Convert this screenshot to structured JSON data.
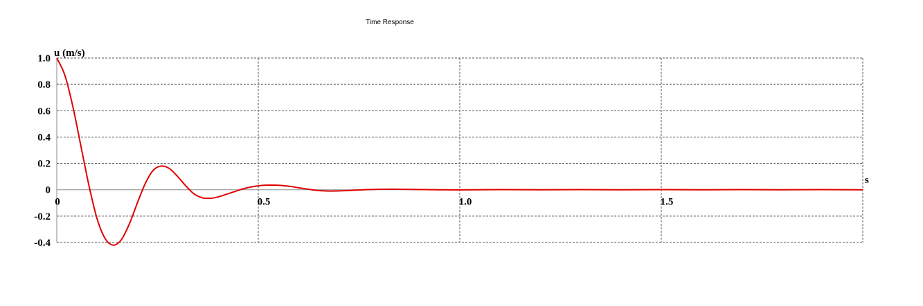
{
  "chart_data": {
    "type": "line",
    "title": "Time Response",
    "ylabel": "u (m/s)",
    "xlabel": "s",
    "xlim": [
      0,
      2.0
    ],
    "ylim": [
      -0.4,
      1.0
    ],
    "grid": true,
    "x_ticks": [
      {
        "value": 0,
        "label": "0"
      },
      {
        "value": 0.5,
        "label": "0.5"
      },
      {
        "value": 1.0,
        "label": "1.0"
      },
      {
        "value": 1.5,
        "label": "1.5"
      }
    ],
    "y_ticks": [
      {
        "value": 1.0,
        "label": "1.0"
      },
      {
        "value": 0.8,
        "label": "0.8"
      },
      {
        "value": 0.6,
        "label": "0.6"
      },
      {
        "value": 0.4,
        "label": "0.4"
      },
      {
        "value": 0.2,
        "label": "0.2"
      },
      {
        "value": 0,
        "label": "0"
      },
      {
        "value": -0.2,
        "label": "-0.2"
      },
      {
        "value": -0.4,
        "label": "-0.4"
      }
    ],
    "series": [
      {
        "color": "#e00000",
        "x": [
          0,
          0.02,
          0.04,
          0.06,
          0.08,
          0.1,
          0.12,
          0.14,
          0.16,
          0.18,
          0.2,
          0.22,
          0.24,
          0.26,
          0.28,
          0.3,
          0.32,
          0.34,
          0.36,
          0.38,
          0.4,
          0.42,
          0.44,
          0.46,
          0.48,
          0.5,
          0.52,
          0.54,
          0.56,
          0.58,
          0.6,
          0.62,
          0.64,
          0.66,
          0.68,
          0.7,
          0.72,
          0.74,
          0.76,
          0.78,
          0.8,
          0.85,
          0.9,
          0.95,
          1.0,
          1.1,
          1.2,
          1.3,
          1.4,
          1.5,
          1.6,
          1.7,
          1.8,
          1.9,
          2.0
        ],
        "y": [
          1.0,
          0.87,
          0.63,
          0.33,
          0.03,
          -0.22,
          -0.37,
          -0.42,
          -0.38,
          -0.26,
          -0.1,
          0.05,
          0.15,
          0.18,
          0.16,
          0.1,
          0.03,
          -0.03,
          -0.06,
          -0.065,
          -0.055,
          -0.035,
          -0.015,
          0.005,
          0.02,
          0.03,
          0.035,
          0.035,
          0.032,
          0.025,
          0.015,
          0.006,
          -0.003,
          -0.008,
          -0.01,
          -0.009,
          -0.006,
          -0.003,
          0.0,
          0.002,
          0.004,
          0.004,
          0.002,
          0.0,
          -0.001,
          0.001,
          0.0,
          0.001,
          0.0,
          0.001,
          0.0,
          0.001,
          0.0,
          0.001,
          0.0
        ]
      }
    ]
  }
}
